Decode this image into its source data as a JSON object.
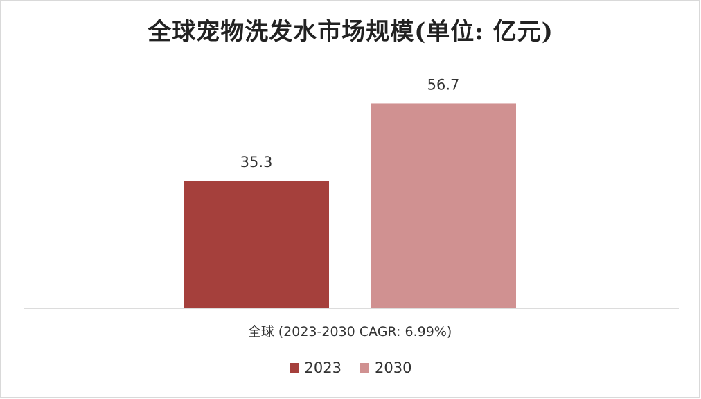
{
  "chart_data": {
    "type": "bar",
    "title": "全球宠物洗发水市场规模(单位: 亿元)",
    "categories": [
      "全球 (2023-2030 CAGR: 6.99%)"
    ],
    "series": [
      {
        "name": "2023",
        "values": [
          35.3
        ],
        "color": "#a5403c"
      },
      {
        "name": "2030",
        "values": [
          56.7
        ],
        "color": "#d09191"
      }
    ],
    "ylim": [
      0,
      80
    ],
    "grid": false,
    "legend_position": "bottom",
    "xlabel": "",
    "ylabel": ""
  }
}
